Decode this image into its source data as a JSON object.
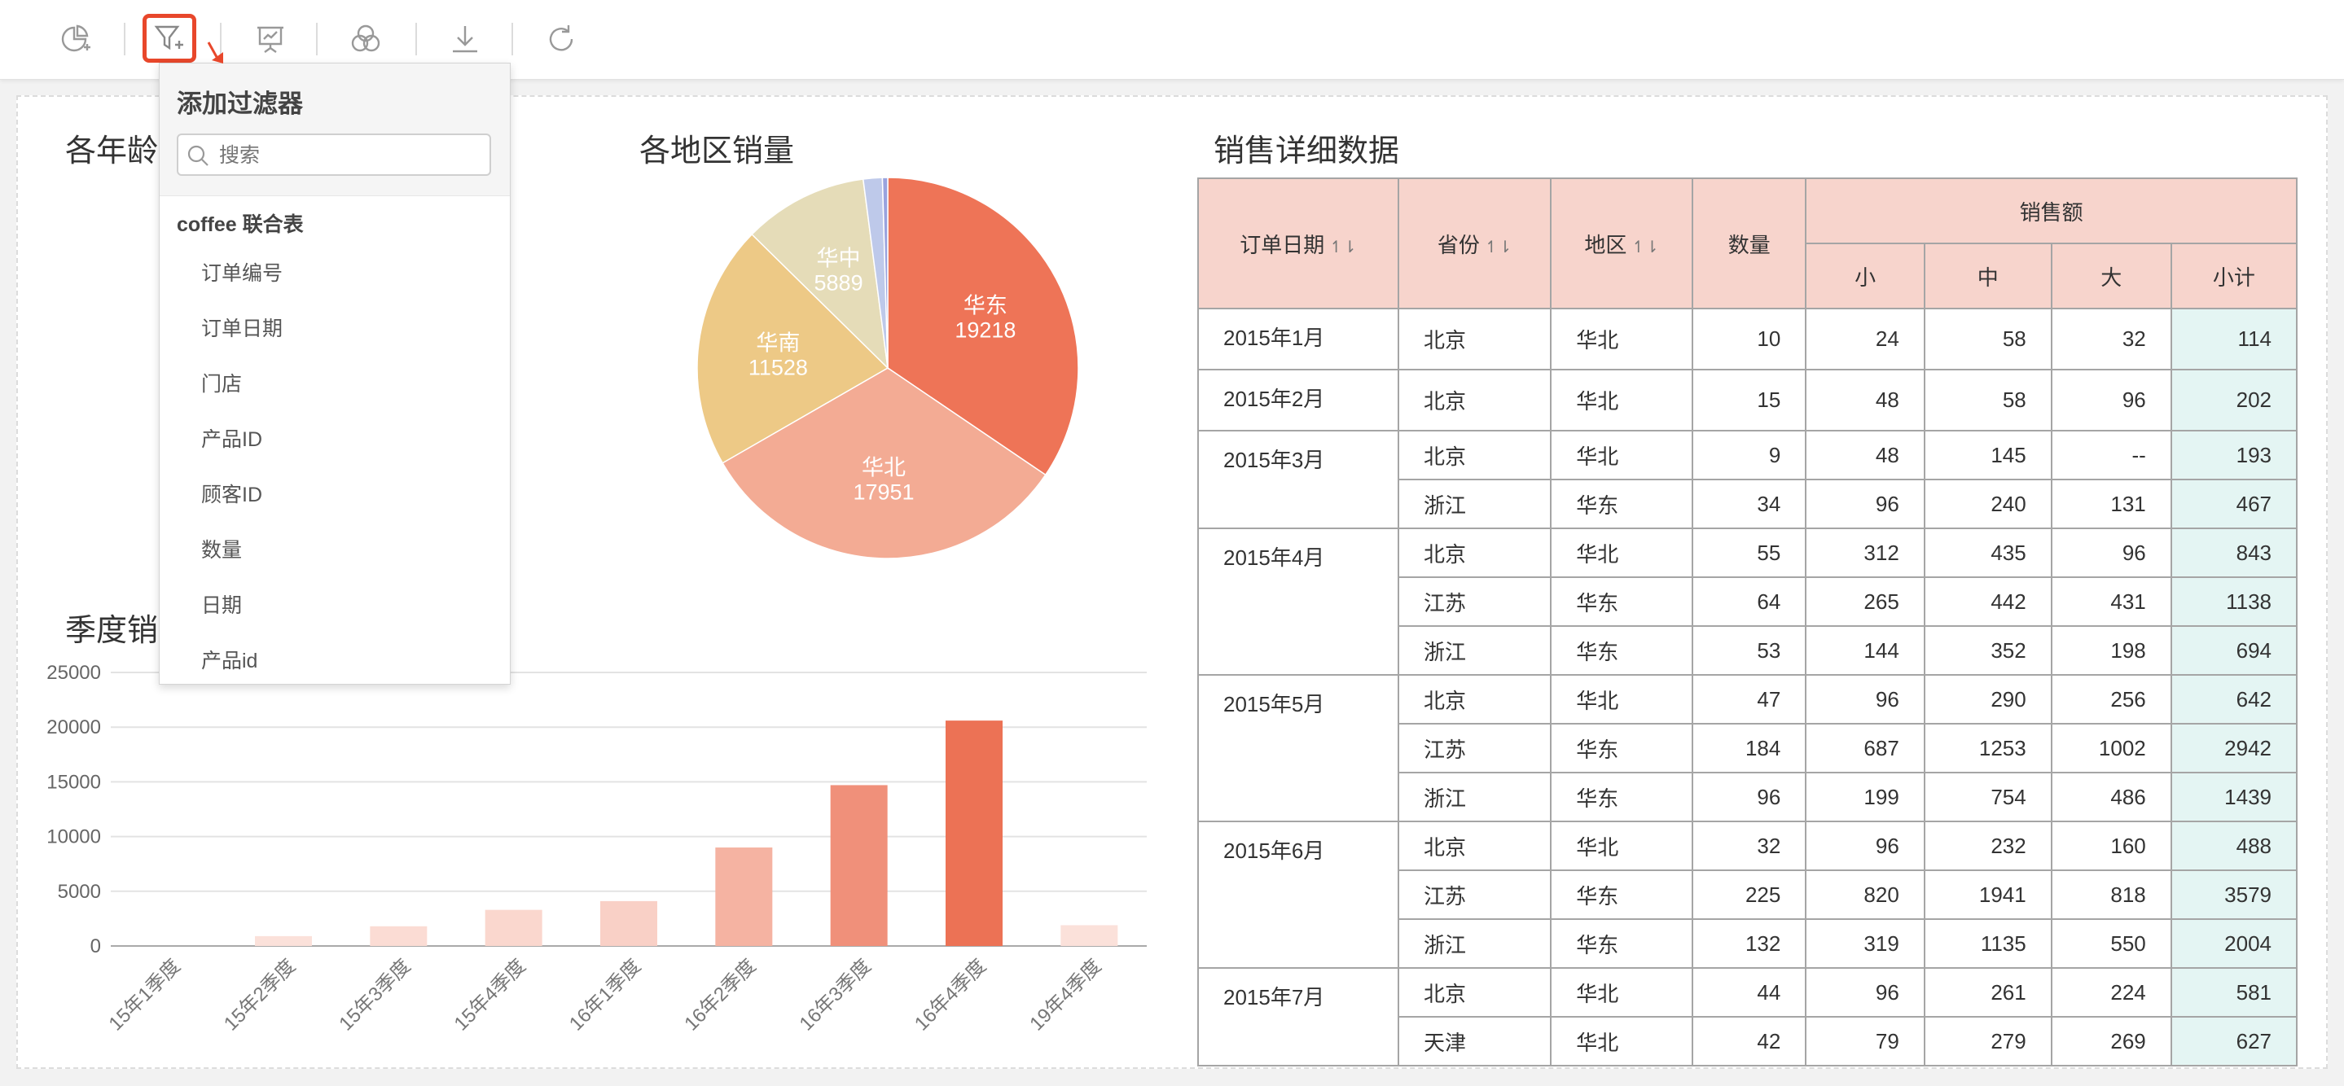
{
  "toolbar": {
    "buttons": [
      {
        "name": "add-chart-button",
        "icon": "pie-chart-plus-icon"
      },
      {
        "name": "add-filter-button",
        "icon": "filter-plus-icon",
        "active": true
      },
      {
        "name": "presentation-button",
        "icon": "presentation-icon"
      },
      {
        "name": "merge-button",
        "icon": "three-circles-icon"
      },
      {
        "name": "download-button",
        "icon": "download-icon"
      },
      {
        "name": "refresh-button",
        "icon": "refresh-icon"
      }
    ]
  },
  "panels": {
    "age_title": "各年龄",
    "region_title": "各地区销量",
    "detail_title": "销售详细数据",
    "quarter_title": "季度销"
  },
  "filter_panel": {
    "title": "添加过滤器",
    "search_placeholder": "搜索",
    "table_name": "coffee 联合表",
    "fields": [
      "订单编号",
      "订单日期",
      "门店",
      "产品ID",
      "顾客ID",
      "数量",
      "日期",
      "产品id"
    ]
  },
  "chart_data": [
    {
      "type": "pie",
      "title": "各地区销量",
      "slices": [
        {
          "label": "华东",
          "value": 19218,
          "color": "#ee7457"
        },
        {
          "label": "华北",
          "value": 17951,
          "color": "#f3ab94"
        },
        {
          "label": "华南",
          "value": 11528,
          "color": "#edc986"
        },
        {
          "label": "华中",
          "value": 5889,
          "color": "#e5dcb8"
        },
        {
          "label": "",
          "value": 900,
          "color": "#bec9ea"
        },
        {
          "label": "",
          "value": 250,
          "color": "#9aa3de"
        }
      ]
    },
    {
      "type": "bar",
      "title": "季度销",
      "categories": [
        "15年1季度",
        "15年2季度",
        "15年3季度",
        "15年4季度",
        "16年1季度",
        "16年2季度",
        "16年3季度",
        "16年4季度",
        "19年4季度"
      ],
      "values": [
        0,
        900,
        1800,
        3300,
        4100,
        9000,
        14700,
        20600,
        1900
      ],
      "colors": [
        "#fbe3dd",
        "#fbe1da",
        "#fbdcd4",
        "#fad7ce",
        "#f9d0c6",
        "#f5b3a2",
        "#f0907a",
        "#ec7255",
        "#fbe1da"
      ],
      "yticks": [
        "0",
        "5000",
        "10000",
        "15000",
        "20000",
        "25000"
      ],
      "ylim": [
        0,
        25000
      ]
    }
  ],
  "detail_table": {
    "headers": {
      "date": "订单日期",
      "province": "省份",
      "region": "地区",
      "qty": "数量",
      "sales": "销售额",
      "small": "小",
      "medium": "中",
      "large": "大",
      "subtotal": "小计"
    },
    "groups": [
      {
        "date": "2015年1月",
        "rows": [
          [
            "北京",
            "华北",
            "10",
            "24",
            "58",
            "32",
            "114"
          ]
        ]
      },
      {
        "date": "2015年2月",
        "rows": [
          [
            "北京",
            "华北",
            "15",
            "48",
            "58",
            "96",
            "202"
          ]
        ]
      },
      {
        "date": "2015年3月",
        "rows": [
          [
            "北京",
            "华北",
            "9",
            "48",
            "145",
            "--",
            "193"
          ],
          [
            "浙江",
            "华东",
            "34",
            "96",
            "240",
            "131",
            "467"
          ]
        ]
      },
      {
        "date": "2015年4月",
        "rows": [
          [
            "北京",
            "华北",
            "55",
            "312",
            "435",
            "96",
            "843"
          ],
          [
            "江苏",
            "华东",
            "64",
            "265",
            "442",
            "431",
            "1138"
          ],
          [
            "浙江",
            "华东",
            "53",
            "144",
            "352",
            "198",
            "694"
          ]
        ]
      },
      {
        "date": "2015年5月",
        "rows": [
          [
            "北京",
            "华北",
            "47",
            "96",
            "290",
            "256",
            "642"
          ],
          [
            "江苏",
            "华东",
            "184",
            "687",
            "1253",
            "1002",
            "2942"
          ],
          [
            "浙江",
            "华东",
            "96",
            "199",
            "754",
            "486",
            "1439"
          ]
        ]
      },
      {
        "date": "2015年6月",
        "rows": [
          [
            "北京",
            "华北",
            "32",
            "96",
            "232",
            "160",
            "488"
          ],
          [
            "江苏",
            "华东",
            "225",
            "820",
            "1941",
            "818",
            "3579"
          ],
          [
            "浙江",
            "华东",
            "132",
            "319",
            "1135",
            "550",
            "2004"
          ]
        ]
      },
      {
        "date": "2015年7月",
        "rows": [
          [
            "北京",
            "华北",
            "44",
            "96",
            "261",
            "224",
            "581"
          ],
          [
            "天津",
            "华北",
            "42",
            "79",
            "279",
            "269",
            "627"
          ]
        ]
      }
    ]
  }
}
